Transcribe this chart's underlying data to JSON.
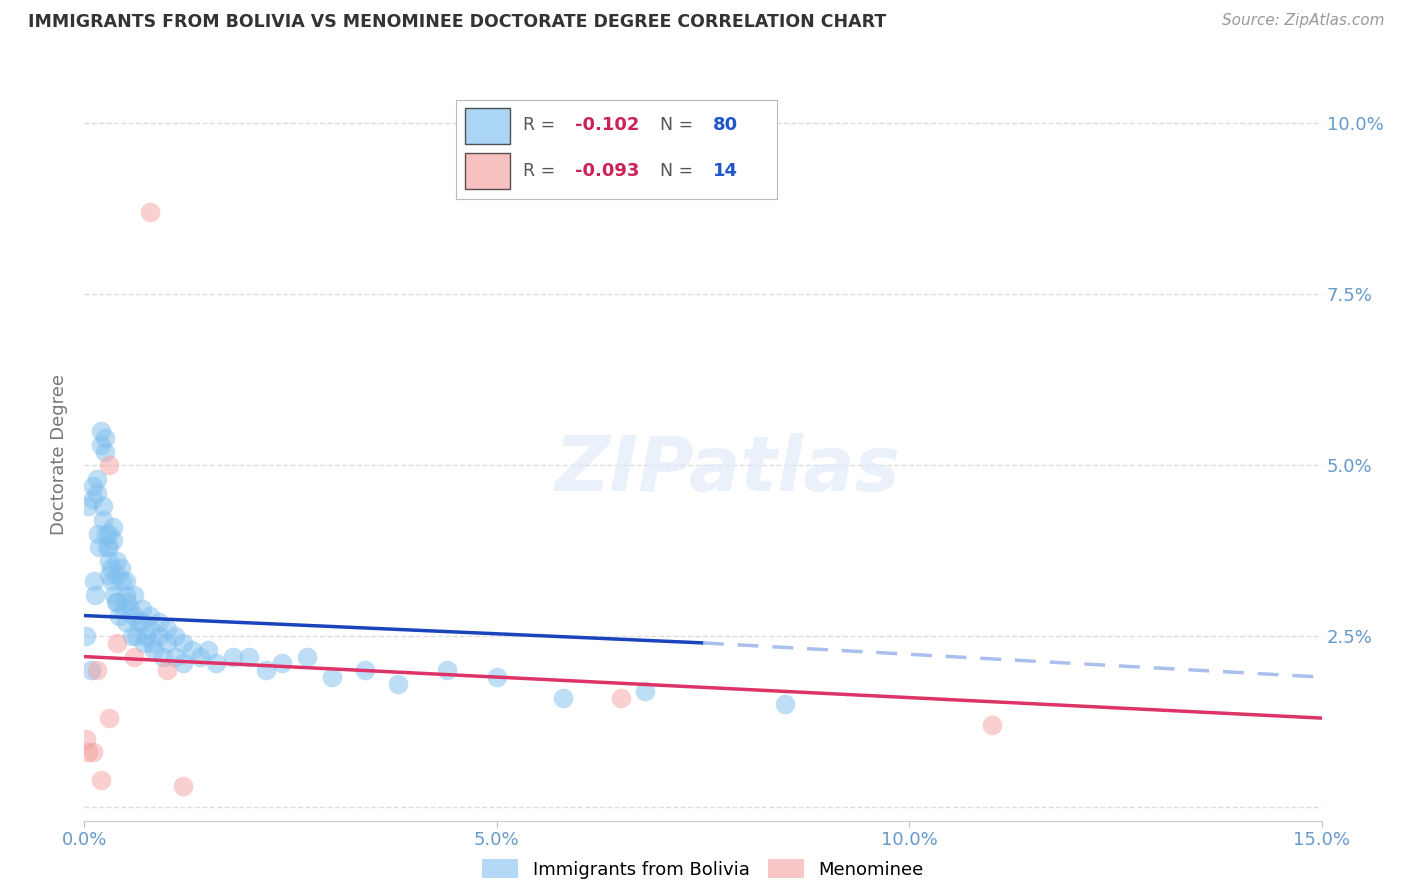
{
  "title": "IMMIGRANTS FROM BOLIVIA VS MENOMINEE DOCTORATE DEGREE CORRELATION CHART",
  "source": "Source: ZipAtlas.com",
  "ylabel": "Doctorate Degree",
  "xlim": [
    0.0,
    0.15
  ],
  "ylim": [
    -0.002,
    0.105
  ],
  "xticks": [
    0.0,
    0.05,
    0.1,
    0.15
  ],
  "xticklabels": [
    "0.0%",
    "5.0%",
    "10.0%",
    "15.0%"
  ],
  "yticks_right": [
    0.0,
    0.025,
    0.05,
    0.075,
    0.1
  ],
  "yticklabels_right": [
    "",
    "2.5%",
    "5.0%",
    "7.5%",
    "10.0%"
  ],
  "blue_color": "#7fbfef",
  "pink_color": "#f4a0a0",
  "trendline_blue_solid": "#1a44bb",
  "trendline_blue_dashed": "#aabfee",
  "trendline_pink": "#dd3366",
  "legend_r_blue": "-0.102",
  "legend_n_blue": "80",
  "legend_r_pink": "-0.093",
  "legend_n_pink": "14",
  "r_color": "#cc2255",
  "n_color": "#2255cc",
  "background_color": "#ffffff",
  "grid_color": "#dddddd",
  "title_color": "#333333",
  "axis_label_color": "#6699cc",
  "tick_color": "#6699cc",
  "bolivia_x": [
    0.0002,
    0.0005,
    0.0008,
    0.001,
    0.001,
    0.0012,
    0.0013,
    0.0015,
    0.0015,
    0.0016,
    0.0018,
    0.002,
    0.002,
    0.0022,
    0.0023,
    0.0025,
    0.0025,
    0.0026,
    0.0028,
    0.003,
    0.003,
    0.003,
    0.003,
    0.0032,
    0.0033,
    0.0035,
    0.0035,
    0.0036,
    0.0038,
    0.004,
    0.004,
    0.004,
    0.0042,
    0.0044,
    0.0046,
    0.0048,
    0.005,
    0.005,
    0.005,
    0.0052,
    0.0055,
    0.0058,
    0.006,
    0.006,
    0.0062,
    0.0065,
    0.007,
    0.007,
    0.0072,
    0.0075,
    0.008,
    0.008,
    0.0082,
    0.0085,
    0.009,
    0.009,
    0.0095,
    0.01,
    0.01,
    0.011,
    0.011,
    0.012,
    0.012,
    0.013,
    0.014,
    0.015,
    0.016,
    0.018,
    0.02,
    0.022,
    0.024,
    0.027,
    0.03,
    0.034,
    0.038,
    0.044,
    0.05,
    0.058,
    0.068,
    0.085
  ],
  "bolivia_y": [
    0.025,
    0.044,
    0.02,
    0.047,
    0.045,
    0.033,
    0.031,
    0.048,
    0.046,
    0.04,
    0.038,
    0.055,
    0.053,
    0.044,
    0.042,
    0.054,
    0.052,
    0.04,
    0.038,
    0.04,
    0.038,
    0.036,
    0.034,
    0.035,
    0.033,
    0.041,
    0.039,
    0.031,
    0.03,
    0.036,
    0.034,
    0.03,
    0.028,
    0.035,
    0.033,
    0.029,
    0.033,
    0.031,
    0.027,
    0.03,
    0.029,
    0.025,
    0.031,
    0.028,
    0.025,
    0.027,
    0.029,
    0.027,
    0.024,
    0.025,
    0.028,
    0.026,
    0.024,
    0.023,
    0.027,
    0.025,
    0.022,
    0.026,
    0.024,
    0.025,
    0.022,
    0.024,
    0.021,
    0.023,
    0.022,
    0.023,
    0.021,
    0.022,
    0.022,
    0.02,
    0.021,
    0.022,
    0.019,
    0.02,
    0.018,
    0.02,
    0.019,
    0.016,
    0.017,
    0.015
  ],
  "menominee_x": [
    0.0002,
    0.0005,
    0.001,
    0.0015,
    0.002,
    0.003,
    0.003,
    0.004,
    0.006,
    0.008,
    0.01,
    0.012,
    0.065,
    0.11
  ],
  "menominee_y": [
    0.01,
    0.008,
    0.008,
    0.02,
    0.004,
    0.05,
    0.013,
    0.024,
    0.022,
    0.087,
    0.02,
    0.003,
    0.016,
    0.012
  ],
  "blue_trendline_x0": 0.0,
  "blue_trendline_y0": 0.028,
  "blue_trendline_x_solid_end": 0.075,
  "blue_trendline_y_solid_end": 0.024,
  "blue_trendline_x1": 0.15,
  "blue_trendline_y1": 0.019,
  "pink_trendline_x0": 0.0,
  "pink_trendline_y0": 0.022,
  "pink_trendline_x1": 0.15,
  "pink_trendline_y1": 0.013
}
